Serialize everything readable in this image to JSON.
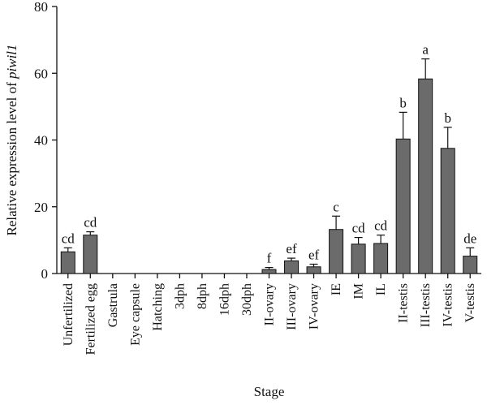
{
  "chart_data": {
    "type": "bar",
    "xlabel": "Stage",
    "ylabel_prefix": "Relative expression level of ",
    "ylabel_gene": "piwil1",
    "ylim": [
      0,
      80
    ],
    "yticks": [
      0,
      20,
      40,
      60,
      80
    ],
    "grid": false,
    "bar_color": "#6b6b6b",
    "categories": [
      "Unfertilized",
      "Fertilized egg",
      "Gastrula",
      "Eye capsule",
      "Hatching",
      "3dph",
      "8dph",
      "16dph",
      "30dph",
      "II-ovary",
      "III-ovary",
      "IV-ovary",
      "IE",
      "IM",
      "IL",
      "II-testis",
      "III-testis",
      "IV-testis",
      "V-testis"
    ],
    "values": [
      6.5,
      11.5,
      0,
      0,
      0,
      0,
      0,
      0,
      0,
      1.2,
      3.8,
      2.0,
      13.2,
      8.8,
      9.0,
      40.3,
      58.3,
      37.5,
      5.2
    ],
    "errors": [
      1.2,
      1.0,
      0,
      0,
      0,
      0,
      0,
      0,
      0,
      0.6,
      0.8,
      0.8,
      4.0,
      2.0,
      2.5,
      8.0,
      6.0,
      6.3,
      2.5
    ],
    "significance": [
      "cd",
      "cd",
      "",
      "",
      "",
      "",
      "",
      "",
      "",
      "f",
      "ef",
      "ef",
      "c",
      "cd",
      "cd",
      "b",
      "a",
      "b",
      "de"
    ]
  }
}
